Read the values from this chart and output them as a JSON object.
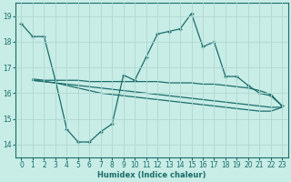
{
  "xlabel": "Humidex (Indice chaleur)",
  "bg_color": "#c8ece6",
  "grid_color": "#b0d8d0",
  "line_color": "#1a6e6a",
  "xlim": [
    -0.5,
    23.5
  ],
  "ylim": [
    13.5,
    19.5
  ],
  "yticks": [
    14,
    15,
    16,
    17,
    18,
    19
  ],
  "xticks": [
    0,
    1,
    2,
    3,
    4,
    5,
    6,
    7,
    8,
    9,
    10,
    11,
    12,
    13,
    14,
    15,
    16,
    17,
    18,
    19,
    20,
    21,
    22,
    23
  ],
  "line1_x": [
    0,
    1,
    2,
    3,
    4,
    5,
    6,
    7,
    8,
    9,
    10,
    11,
    12,
    13,
    14,
    15,
    16,
    17,
    18,
    19,
    20,
    21,
    22,
    23
  ],
  "line1_y": [
    18.7,
    18.2,
    18.2,
    16.5,
    14.6,
    14.1,
    14.1,
    14.5,
    14.8,
    16.7,
    16.5,
    17.4,
    18.3,
    18.4,
    18.5,
    19.1,
    17.8,
    18.0,
    16.65,
    16.65,
    16.3,
    16.0,
    15.9,
    15.5
  ],
  "line2_x": [
    1,
    2,
    3,
    4,
    5,
    6,
    7,
    8,
    9,
    10,
    11,
    12,
    13,
    14,
    15,
    16,
    17,
    18,
    19,
    20,
    21,
    22,
    23
  ],
  "line2_y": [
    16.55,
    16.5,
    16.5,
    16.5,
    16.5,
    16.45,
    16.45,
    16.45,
    16.45,
    16.45,
    16.45,
    16.45,
    16.4,
    16.4,
    16.4,
    16.35,
    16.35,
    16.3,
    16.25,
    16.2,
    16.1,
    15.95,
    15.5
  ],
  "line3_x": [
    1,
    2,
    3,
    4,
    5,
    6,
    7,
    8,
    9,
    10,
    11,
    12,
    13,
    14,
    15,
    16,
    17,
    18,
    19,
    20,
    21,
    22,
    23
  ],
  "line3_y": [
    16.5,
    16.45,
    16.4,
    16.35,
    16.3,
    16.25,
    16.2,
    16.15,
    16.1,
    16.05,
    16.0,
    15.95,
    15.9,
    15.85,
    15.8,
    15.75,
    15.7,
    15.65,
    15.6,
    15.55,
    15.5,
    15.45,
    15.45
  ],
  "line4_x": [
    1,
    2,
    3,
    4,
    5,
    6,
    7,
    8,
    9,
    10,
    11,
    12,
    13,
    14,
    15,
    16,
    17,
    18,
    19,
    20,
    21,
    22,
    23
  ],
  "line4_y": [
    16.5,
    16.45,
    16.4,
    16.3,
    16.2,
    16.1,
    16.0,
    15.95,
    15.9,
    15.85,
    15.8,
    15.75,
    15.7,
    15.65,
    15.6,
    15.55,
    15.5,
    15.45,
    15.4,
    15.35,
    15.3,
    15.3,
    15.45
  ]
}
